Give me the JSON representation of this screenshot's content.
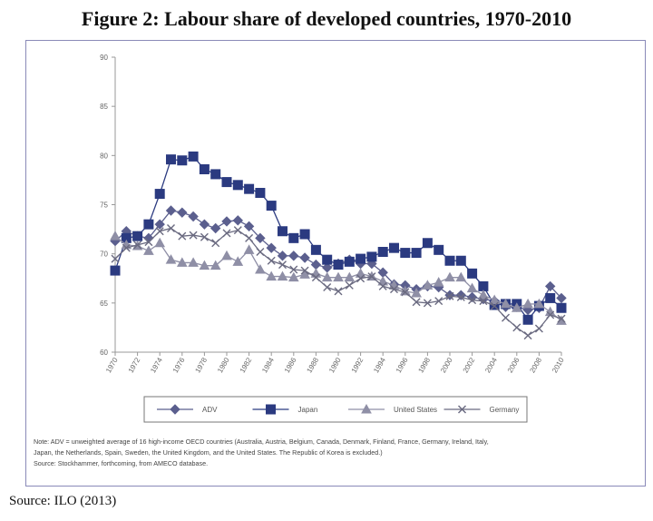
{
  "title": "Figure 2: Labour share of developed countries, 1970-2010",
  "source": "Source: ILO (2013)",
  "note_line1": "Note: ADV = unweighted average of 16 high-income OECD countries (Australia, Austria, Belgium, Canada, Denmark, Finland, France, Germany, Ireland, Italy,",
  "note_line2": "Japan, the Netherlands, Spain, Sweden, the United Kingdom, and the United States. The Republic of Korea is excluded.)",
  "note_line3": "Source: Stockhammer, forthcoming, from AMECO database.",
  "chart_data": {
    "type": "line",
    "title": "",
    "xlabel": "",
    "ylabel": "",
    "ylim": [
      60,
      90
    ],
    "yticks": [
      60,
      65,
      70,
      75,
      80,
      85,
      90
    ],
    "xlim": [
      1970,
      2010
    ],
    "xticks": [
      1970,
      1972,
      1974,
      1976,
      1978,
      1980,
      1982,
      1984,
      1986,
      1988,
      1990,
      1992,
      1994,
      1996,
      1998,
      2000,
      2002,
      2004,
      2006,
      2008,
      2010
    ],
    "grid": false,
    "legend_position": "bottom",
    "x": [
      1970,
      1971,
      1972,
      1973,
      1974,
      1975,
      1976,
      1977,
      1978,
      1979,
      1980,
      1981,
      1982,
      1983,
      1984,
      1985,
      1986,
      1987,
      1988,
      1989,
      1990,
      1991,
      1992,
      1993,
      1994,
      1995,
      1996,
      1997,
      1998,
      1999,
      2000,
      2001,
      2002,
      2003,
      2004,
      2005,
      2006,
      2007,
      2008,
      2009,
      2010
    ],
    "series": [
      {
        "name": "ADV",
        "color": "#5b5f8e",
        "marker": "diamond",
        "values": [
          71.3,
          72.3,
          71.8,
          71.6,
          73.0,
          74.4,
          74.2,
          73.8,
          73.0,
          72.6,
          73.3,
          73.4,
          72.8,
          71.6,
          70.6,
          69.8,
          69.8,
          69.6,
          68.9,
          68.6,
          69.0,
          69.4,
          69.0,
          69.0,
          68.1,
          66.9,
          66.8,
          66.4,
          66.7,
          66.6,
          65.8,
          65.8,
          65.6,
          65.4,
          65.2,
          64.6,
          64.6,
          64.3,
          64.5,
          66.7,
          65.5
        ]
      },
      {
        "name": "Japan",
        "color": "#2b3a80",
        "marker": "square",
        "values": [
          68.3,
          71.6,
          71.8,
          73.0,
          76.1,
          79.6,
          79.5,
          79.9,
          78.6,
          78.1,
          77.3,
          77.0,
          76.6,
          76.2,
          74.9,
          72.3,
          71.6,
          72.0,
          70.4,
          69.4,
          68.9,
          69.2,
          69.5,
          69.7,
          70.2,
          70.6,
          70.1,
          70.1,
          71.1,
          70.4,
          69.3,
          69.3,
          68.0,
          66.7,
          64.8,
          64.9,
          64.9,
          63.3,
          64.7,
          65.5,
          64.5
        ]
      },
      {
        "name": "United States",
        "color": "#8f8fa6",
        "marker": "triangle",
        "values": [
          71.8,
          70.9,
          70.8,
          70.3,
          71.1,
          69.4,
          69.1,
          69.1,
          68.8,
          68.8,
          69.8,
          69.2,
          70.4,
          68.4,
          67.7,
          67.7,
          67.6,
          67.9,
          68.0,
          67.6,
          67.6,
          67.6,
          68.0,
          67.7,
          67.2,
          66.8,
          66.2,
          66.0,
          66.8,
          67.1,
          67.6,
          67.6,
          66.5,
          65.8,
          65.3,
          64.9,
          64.5,
          64.9,
          64.9,
          64.1,
          63.2
        ]
      },
      {
        "name": "Germany",
        "color": "#6a6a80",
        "marker": "x",
        "values": [
          69.5,
          70.6,
          70.9,
          71.2,
          72.3,
          72.6,
          71.8,
          71.9,
          71.7,
          71.1,
          72.1,
          72.4,
          71.6,
          70.2,
          69.3,
          68.9,
          68.4,
          68.3,
          67.6,
          66.6,
          66.2,
          66.8,
          67.5,
          67.7,
          66.7,
          66.4,
          66.1,
          65.1,
          65.0,
          65.2,
          65.7,
          65.6,
          65.3,
          65.2,
          64.7,
          63.5,
          62.5,
          61.7,
          62.4,
          63.8,
          63.4
        ]
      }
    ]
  }
}
